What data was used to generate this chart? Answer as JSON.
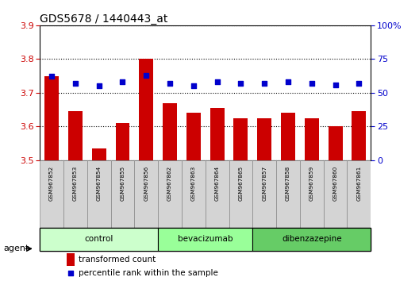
{
  "title": "GDS5678 / 1440443_at",
  "samples": [
    "GSM967852",
    "GSM967853",
    "GSM967854",
    "GSM967855",
    "GSM967856",
    "GSM967862",
    "GSM967863",
    "GSM967864",
    "GSM967865",
    "GSM967857",
    "GSM967858",
    "GSM967859",
    "GSM967860",
    "GSM967861"
  ],
  "transformed_counts": [
    3.75,
    3.645,
    3.535,
    3.61,
    3.8,
    3.67,
    3.64,
    3.655,
    3.625,
    3.625,
    3.64,
    3.625,
    3.6,
    3.645
  ],
  "percentile_ranks": [
    62,
    57,
    55,
    58,
    63,
    57,
    55,
    58,
    57,
    57,
    58,
    57,
    56,
    57
  ],
  "groups": [
    {
      "name": "control",
      "indices": [
        0,
        1,
        2,
        3,
        4
      ],
      "color": "#ccffcc"
    },
    {
      "name": "bevacizumab",
      "indices": [
        5,
        6,
        7,
        8
      ],
      "color": "#99ff99"
    },
    {
      "name": "dibenzazepine",
      "indices": [
        9,
        10,
        11,
        12,
        13
      ],
      "color": "#66cc66"
    }
  ],
  "ylim_left": [
    3.5,
    3.9
  ],
  "ylim_right": [
    0,
    100
  ],
  "yticks_left": [
    3.5,
    3.6,
    3.7,
    3.8,
    3.9
  ],
  "yticks_right": [
    0,
    25,
    50,
    75,
    100
  ],
  "bar_color": "#cc0000",
  "dot_color": "#0000cc",
  "bar_width": 0.6,
  "background_color": "#ffffff",
  "plot_bg_color": "#ffffff",
  "grid_color": "#000000",
  "title_color": "#000000",
  "left_tick_color": "#cc0000",
  "right_tick_color": "#0000cc",
  "legend_bar_label": "transformed count",
  "legend_dot_label": "percentile rank within the sample",
  "agent_label": "agent",
  "sample_box_color": "#d4d4d4",
  "sample_box_edge_color": "#888888"
}
